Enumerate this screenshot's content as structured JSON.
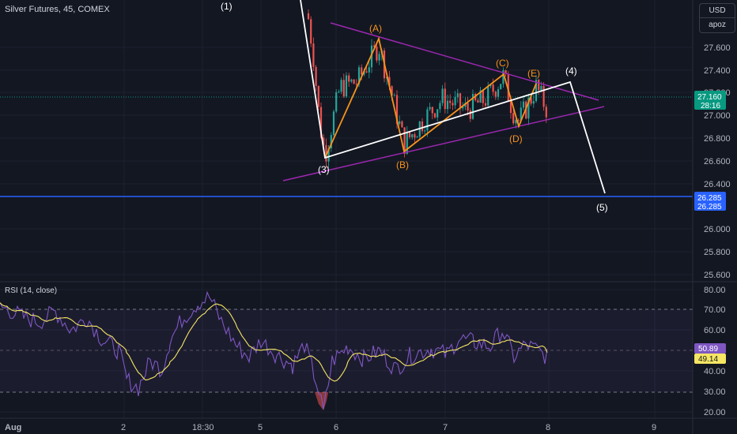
{
  "header": {
    "symbol_title": "Silver Futures, 45, COMEX",
    "currency": "USD",
    "unit": "apoz"
  },
  "price_axis": {
    "ticks": [
      "27.600",
      "27.400",
      "27.200",
      "27.000",
      "26.800",
      "26.600",
      "26.400",
      "26.000",
      "25.800",
      "25.600"
    ],
    "last_price": "27.160",
    "countdown": "28:16",
    "level_price_a": "26.285",
    "level_price_b": "26.285"
  },
  "rsi": {
    "title": "RSI (14, close)",
    "ticks": [
      "80.00",
      "70.00",
      "60.00",
      "40.00",
      "30.00",
      "20.00"
    ],
    "value_rsi": "50.89",
    "value_ma": "49.14"
  },
  "time_axis": {
    "labels": [
      "Aug",
      "2",
      "18:30",
      "5",
      "6",
      "7",
      "8",
      "9"
    ]
  },
  "waves": {
    "w1": "(1)",
    "w3": "(3)",
    "w4": "(4)",
    "w5": "(5)",
    "wA": "(A)",
    "wB": "(B)",
    "wC": "(C)",
    "wD": "(D)",
    "wE": "(E)"
  },
  "colors": {
    "background": "#131722",
    "up": "#26a69a",
    "down": "#ef5350",
    "wave_white": "#ffffff",
    "wave_orange": "#f7931a",
    "triangle": "#9c27b0",
    "level": "#2962ff",
    "rsi": "#7e57c2",
    "rsi_ma": "#f5e663",
    "last_price_badge": "#089981"
  },
  "chart_data": {
    "type": "candlestick_with_rsi",
    "title": "Silver Futures, 45, COMEX",
    "price_range": [
      25.55,
      27.93
    ],
    "rsi_range": [
      18,
      83
    ],
    "last_price": 27.16,
    "horizontal_level": 26.285,
    "impulse_wave": [
      {
        "label": "(1)",
        "price": 28.05
      },
      {
        "label": "(3)",
        "price": 26.63
      },
      {
        "label": "(4)",
        "price": 27.29
      },
      {
        "label": "(5)",
        "price": 26.33
      }
    ],
    "triangle_wave": [
      {
        "label": "(A)",
        "price": 27.67
      },
      {
        "label": "(B)",
        "price": 26.68
      },
      {
        "label": "(C)",
        "price": 27.37
      },
      {
        "label": "(D)",
        "price": 26.9
      },
      {
        "label": "(E)",
        "price": 27.28
      }
    ],
    "rsi_levels": [
      70,
      50,
      30
    ],
    "rsi_last": 50.89,
    "rsi_ma_last": 49.14
  }
}
